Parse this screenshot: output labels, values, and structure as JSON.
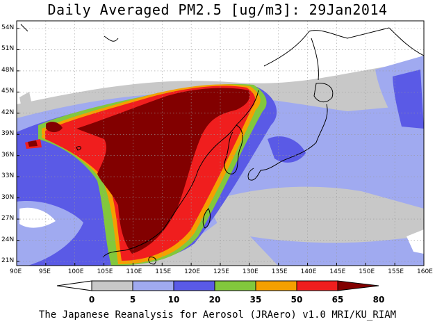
{
  "title": "Daily Averaged PM2.5 [ug/m3]: 29Jan2014",
  "lat_labels": [
    "54N",
    "51N",
    "48N",
    "45N",
    "42N",
    "39N",
    "36N",
    "33N",
    "30N",
    "27N",
    "24N",
    "21N"
  ],
  "lon_labels": [
    "90E",
    "95E",
    "100E",
    "105E",
    "110E",
    "115E",
    "120E",
    "125E",
    "130E",
    "135E",
    "140E",
    "145E",
    "150E",
    "155E",
    "160E"
  ],
  "colorbar": {
    "labels": [
      "0",
      "5",
      "10",
      "20",
      "35",
      "50",
      "65",
      "80"
    ],
    "colors": [
      "#ffffff",
      "#c8c8c8",
      "#a0aaf0",
      "#5a5ae6",
      "#82c83c",
      "#f5a000",
      "#f01e1e",
      "#820000"
    ]
  },
  "footer": "The Japanese Reanalysis for Aerosol (JRAero) v1.0 MRI/KU_RIAM"
}
